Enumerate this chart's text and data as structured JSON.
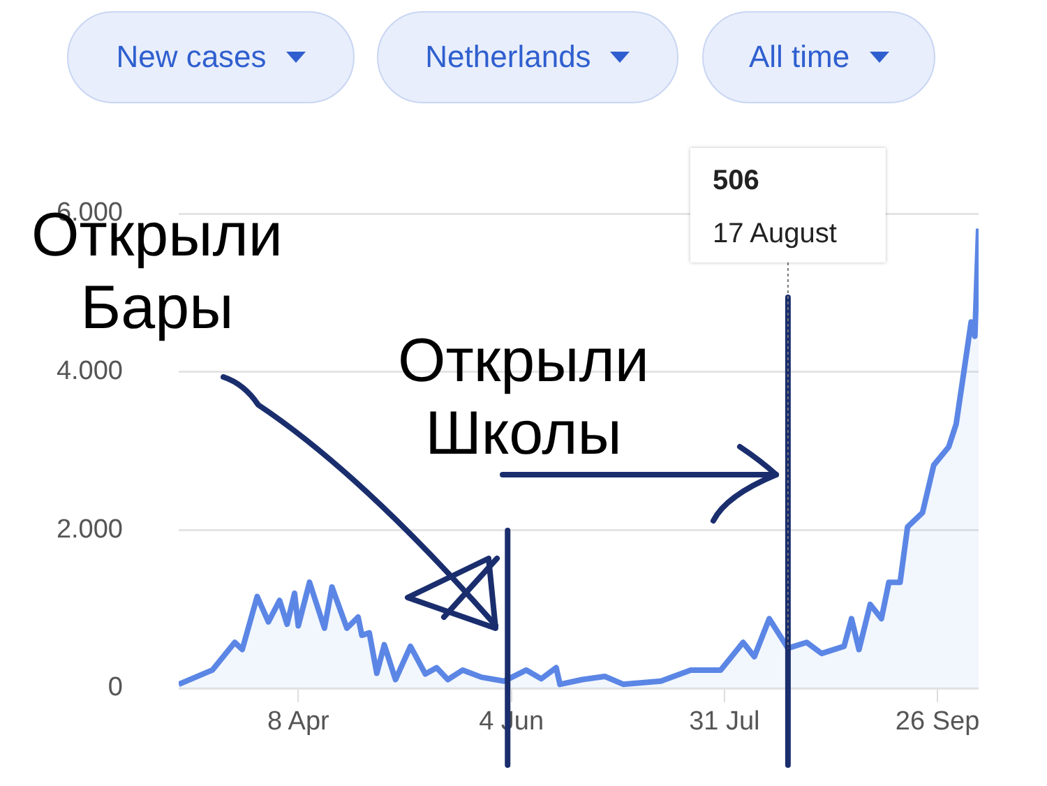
{
  "chart_data": {
    "type": "area",
    "color": "#5b86e5",
    "x": [
      "--03-07",
      "--03-16",
      "--03-22",
      "--03-24",
      "--03-28",
      "--03-31",
      "--04-03",
      "--04-05",
      "--04-07",
      "--04-08",
      "--04-11",
      "--04-15",
      "--04-17",
      "--04-21",
      "--04-24",
      "--04-25",
      "--04-27",
      "--04-29",
      "--05-01",
      "--05-04",
      "--05-08",
      "--05-12",
      "--05-15",
      "--05-18",
      "--05-22",
      "--05-27",
      "--06-02",
      "--06-08",
      "--06-12",
      "--06-16",
      "--06-17",
      "--06-23",
      "--06-29",
      "--07-04",
      "--07-14",
      "--07-22",
      "--07-30",
      "--08-05",
      "--08-08",
      "--08-12",
      "--08-17",
      "--08-22",
      "--08-26",
      "--09-01",
      "--09-03",
      "--09-05",
      "--09-08",
      "--09-11",
      "--09-13",
      "--09-16",
      "--09-18",
      "--09-22",
      "--09-25",
      "--09-29",
      "--10-01",
      "--10-03",
      "--10-05",
      "--10-06",
      "--10-07"
    ],
    "values": [
      50,
      230,
      580,
      490,
      1160,
      840,
      1110,
      810,
      1200,
      790,
      1340,
      760,
      1280,
      760,
      900,
      670,
      700,
      190,
      550,
      110,
      530,
      180,
      260,
      110,
      230,
      140,
      90,
      230,
      120,
      260,
      50,
      110,
      150,
      50,
      90,
      230,
      230,
      580,
      400,
      880,
      506,
      580,
      440,
      530,
      880,
      490,
      1060,
      880,
      1340,
      1340,
      2040,
      2220,
      2820,
      3050,
      3340,
      3980,
      4630,
      4450,
      5810
    ],
    "xlim": [
      "--03-07",
      "--10-07"
    ],
    "xticks": [
      {
        "value": "--04-08",
        "label": "8 Apr"
      },
      {
        "value": "--06-04",
        "label": "4 Jun"
      },
      {
        "value": "--07-31",
        "label": "31 Jul"
      },
      {
        "value": "--09-26",
        "label": "26 Sep"
      }
    ],
    "ylim": [
      0,
      6000
    ],
    "yticks": [
      {
        "value": 0,
        "label": "0"
      },
      {
        "value": 2000,
        "label": "2.000"
      },
      {
        "value": 4000,
        "label": "4.000"
      },
      {
        "value": 6000,
        "label": "6.000"
      }
    ],
    "grid": "y",
    "legend": false,
    "marker": "none",
    "ref_lines": [
      {
        "axis": "x",
        "value": "--06-03",
        "color": "#1a2e6e"
      },
      {
        "axis": "x",
        "value": "--08-17",
        "color": "#1a2e6e"
      }
    ],
    "annotations": [
      "New cases",
      "Netherlands",
      "All time",
      "Открыли Бары",
      "Открыли Школы",
      "506",
      {
        "text": "17 August",
        "x": "--08-17",
        "y": 506
      }
    ]
  }
}
